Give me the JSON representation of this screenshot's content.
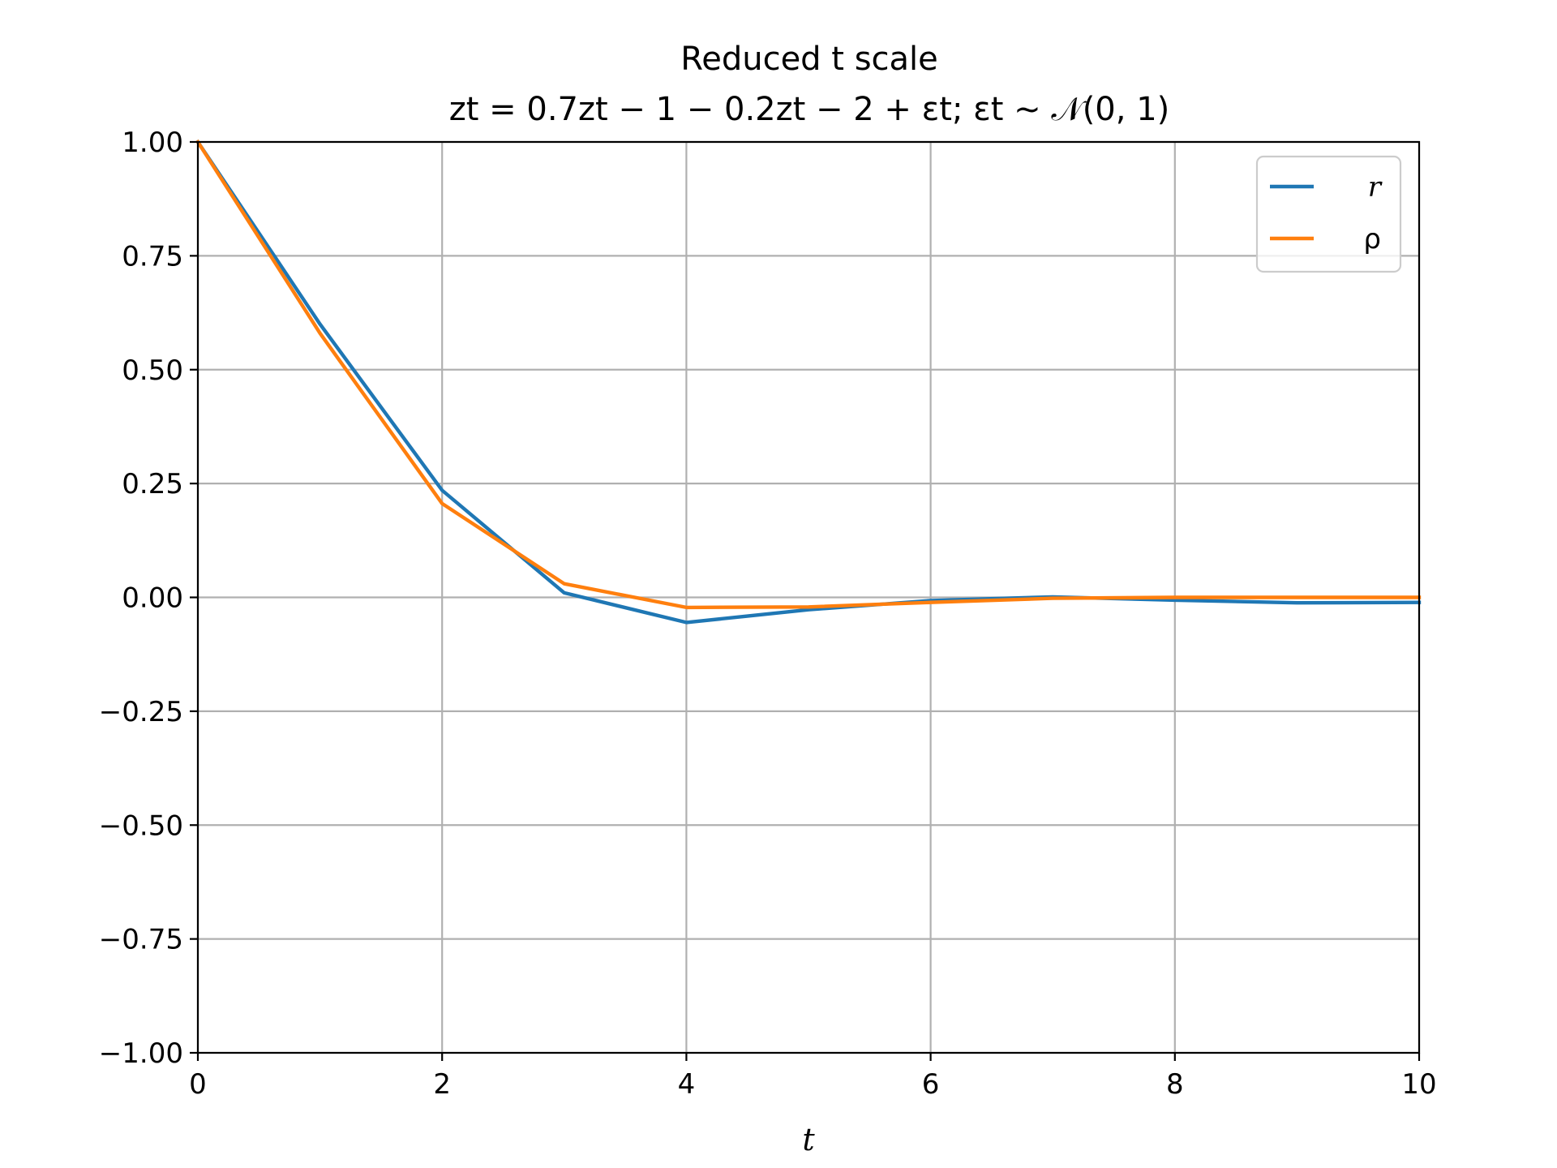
{
  "chart_data": {
    "type": "line",
    "title": "Reduced t scale",
    "subtitle": "zt = 0.7zt − 1 − 0.2zt − 2 + εt; εt ~ 𝒩(0, 1)",
    "xlabel": "t",
    "ylabel": "",
    "xlim": [
      0,
      10
    ],
    "ylim": [
      -1.0,
      1.0
    ],
    "xticks": [
      "0",
      "2",
      "4",
      "6",
      "8",
      "10"
    ],
    "yticks": [
      "1.00",
      "0.75",
      "0.50",
      "0.25",
      "0.00",
      "−0.25",
      "−0.50",
      "−0.75",
      "−1.00"
    ],
    "grid": true,
    "legend_position": "top-right",
    "x": [
      0,
      1,
      2,
      3,
      4,
      5,
      6,
      7,
      8,
      9,
      10
    ],
    "series": [
      {
        "name": "r",
        "color": "#1f77b4",
        "values": [
          1.0,
          0.6,
          0.235,
          0.01,
          -0.055,
          -0.027,
          -0.007,
          0.001,
          -0.006,
          -0.012,
          -0.011
        ]
      },
      {
        "name": "ρ",
        "color": "#ff7f0e",
        "values": [
          1.0,
          0.58,
          0.206,
          0.03,
          -0.022,
          -0.021,
          -0.011,
          -0.002,
          0.0,
          0.0,
          0.0
        ]
      }
    ]
  }
}
